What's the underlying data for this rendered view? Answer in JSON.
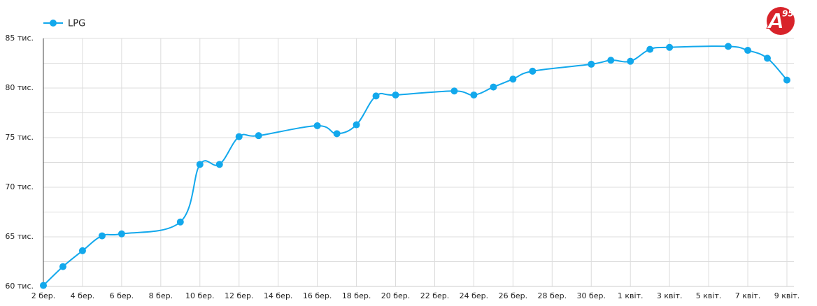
{
  "chart_data": {
    "type": "line",
    "series": [
      {
        "name": "LPG",
        "color": "#12a8ec",
        "x": [
          0,
          1,
          2,
          3,
          4,
          7,
          8,
          9,
          10,
          11,
          14,
          15,
          16,
          17,
          18,
          21,
          22,
          23,
          24,
          25,
          28,
          29,
          30,
          31,
          32,
          35,
          36,
          37,
          38
        ],
        "values": [
          60100,
          62000,
          63600,
          65100,
          65300,
          66500,
          72300,
          72300,
          75100,
          75200,
          76200,
          75400,
          76300,
          79200,
          79300,
          79700,
          79300,
          80100,
          80900,
          81700,
          82400,
          82800,
          82700,
          83900,
          84100,
          84200,
          83800,
          83000,
          80800
        ]
      }
    ],
    "xlim": [
      0,
      38
    ],
    "xticks": [
      {
        "value": 0,
        "label": "2 бер."
      },
      {
        "value": 2,
        "label": "4 бер."
      },
      {
        "value": 4,
        "label": "6 бер."
      },
      {
        "value": 6,
        "label": "8 бер."
      },
      {
        "value": 8,
        "label": "10 бер."
      },
      {
        "value": 10,
        "label": "12 бер."
      },
      {
        "value": 12,
        "label": "14 бер."
      },
      {
        "value": 14,
        "label": "16 бер."
      },
      {
        "value": 16,
        "label": "18 бер."
      },
      {
        "value": 18,
        "label": "20 бер."
      },
      {
        "value": 20,
        "label": "22 бер."
      },
      {
        "value": 22,
        "label": "24 бер."
      },
      {
        "value": 24,
        "label": "26 бер."
      },
      {
        "value": 26,
        "label": "28 бер."
      },
      {
        "value": 28,
        "label": "30 бер."
      },
      {
        "value": 30,
        "label": "1 квіт."
      },
      {
        "value": 32,
        "label": "3 квіт."
      },
      {
        "value": 34,
        "label": "5 квіт."
      },
      {
        "value": 36,
        "label": "7 квіт."
      },
      {
        "value": 38,
        "label": "9 квіт."
      }
    ],
    "ylim": [
      60000,
      85000
    ],
    "yticks": [
      {
        "value": 60000,
        "label": "60 тис."
      },
      {
        "value": 65000,
        "label": "65 тис."
      },
      {
        "value": 70000,
        "label": "70 тис."
      },
      {
        "value": 75000,
        "label": "75 тис."
      },
      {
        "value": 80000,
        "label": "80 тис."
      },
      {
        "value": 85000,
        "label": "85 тис."
      }
    ],
    "grid": true,
    "legend": "top-left"
  },
  "logo": [
    "A",
    "95"
  ]
}
